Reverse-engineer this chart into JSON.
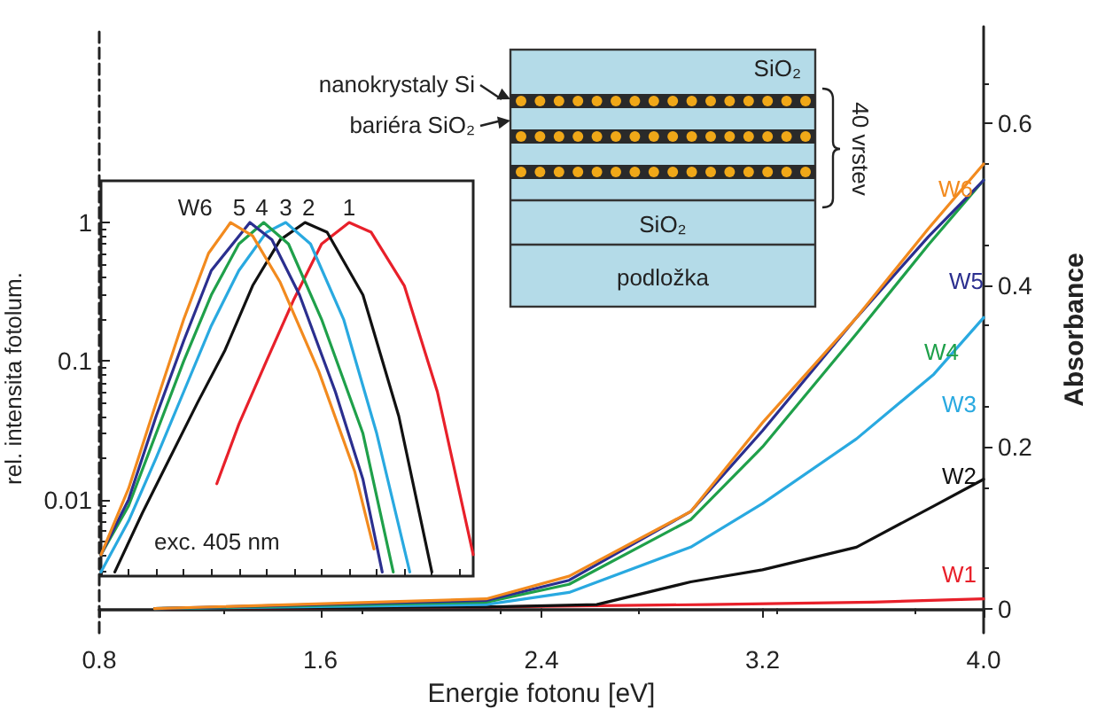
{
  "chart_data": [
    {
      "type": "line",
      "xlabel": "Energie fotonu [eV]",
      "ylabel": "Absorbance",
      "xlim": [
        0.8,
        4.0
      ],
      "xticks": [
        0.8,
        1.6,
        2.4,
        3.2,
        {
          "value": 4.0,
          "label": "4.0"
        }
      ],
      "ylim": [
        -0.03,
        0.72
      ],
      "yticks": [
        0,
        0.2,
        0.4,
        0.6
      ],
      "grid": false,
      "legend": false,
      "marker": "none",
      "line_style": "solid",
      "annotations": [
        "SiO₂",
        "nanokrystaly Si",
        "bariéra SiO₂",
        "40 vrstev",
        "SiO₂",
        "podložka"
      ],
      "series": [
        {
          "name": "W1",
          "color": "#e8202a",
          "x": [
            1.0,
            2.2,
            3.0,
            3.6,
            4.0
          ],
          "values": [
            0,
            0.002,
            0.005,
            0.008,
            0.012
          ]
        },
        {
          "name": "W2",
          "color": "#111111",
          "x": [
            1.0,
            2.2,
            2.6,
            2.94,
            3.2,
            3.54,
            3.82,
            4.0
          ],
          "values": [
            0,
            0.002,
            0.005,
            0.033,
            0.048,
            0.076,
            0.127,
            0.16
          ]
        },
        {
          "name": "W3",
          "color": "#29a9e0",
          "x": [
            1.0,
            2.2,
            2.5,
            2.94,
            3.2,
            3.54,
            3.82,
            4.0
          ],
          "values": [
            0,
            0.005,
            0.02,
            0.076,
            0.13,
            0.21,
            0.29,
            0.36
          ]
        },
        {
          "name": "W4",
          "color": "#1fa04a",
          "x": [
            1.0,
            2.2,
            2.5,
            2.94,
            3.2,
            3.54,
            3.8,
            4.0
          ],
          "values": [
            0,
            0.008,
            0.03,
            0.11,
            0.2,
            0.34,
            0.45,
            0.53
          ]
        },
        {
          "name": "W5",
          "color": "#2b2f8f",
          "x": [
            1.0,
            2.2,
            2.5,
            2.94,
            3.2,
            3.54,
            3.8,
            4.0
          ],
          "values": [
            0,
            0.01,
            0.035,
            0.12,
            0.22,
            0.36,
            0.46,
            0.53
          ]
        },
        {
          "name": "W6",
          "color": "#f28a1e",
          "x": [
            1.0,
            2.2,
            2.5,
            2.94,
            3.2,
            3.54,
            3.8,
            4.0
          ],
          "values": [
            0,
            0.012,
            0.04,
            0.12,
            0.23,
            0.36,
            0.47,
            0.55
          ]
        }
      ]
    },
    {
      "type": "line",
      "ylabel": "rel. intensita fotolum.",
      "log": "y",
      "xlim": [
        0.8,
        2.15
      ],
      "xticks": [
        0.8,
        {
          "value": 0.9,
          "label": null
        },
        {
          "value": 1.0,
          "label": null
        },
        {
          "value": 1.1,
          "label": null
        },
        {
          "value": 1.2,
          "label": null
        },
        {
          "value": 1.3,
          "label": null
        },
        {
          "value": 1.4,
          "label": null
        },
        {
          "value": 1.5,
          "label": null
        },
        1.6,
        {
          "value": 1.7,
          "label": null
        },
        {
          "value": 1.8,
          "label": null
        },
        {
          "value": 1.9,
          "label": null
        },
        {
          "value": 2.0,
          "label": null
        },
        {
          "value": 2.1,
          "label": null
        }
      ],
      "ylim": [
        0.0028,
        2
      ],
      "yticks": [
        0.01,
        0.1,
        1
      ],
      "tick_labels": "y",
      "grid": false,
      "legend": false,
      "marker": "none",
      "line_style": "solid",
      "annotations": [
        "exc. 405 nm"
      ],
      "series": [
        {
          "name": "W6",
          "color": "#f28a1e",
          "x": [
            0.8,
            0.9,
            1.0,
            1.1,
            1.19,
            1.27,
            1.35,
            1.45,
            1.59,
            1.72,
            1.79
          ],
          "values": [
            0.004,
            0.012,
            0.05,
            0.2,
            0.6,
            1,
            0.8,
            0.37,
            0.084,
            0.016,
            0.0044
          ]
        },
        {
          "name": "5",
          "color": "#2b2f8f",
          "x": [
            0.8,
            0.9,
            1.0,
            1.1,
            1.2,
            1.34,
            1.42,
            1.52,
            1.65,
            1.75,
            1.82
          ],
          "values": [
            0.004,
            0.01,
            0.04,
            0.14,
            0.45,
            1,
            0.75,
            0.3,
            0.06,
            0.014,
            0.003
          ]
        },
        {
          "name": "4",
          "color": "#1fa04a",
          "x": [
            0.8,
            0.9,
            1.0,
            1.1,
            1.2,
            1.3,
            1.39,
            1.48,
            1.6,
            1.75,
            1.86
          ],
          "values": [
            0.004,
            0.009,
            0.03,
            0.1,
            0.3,
            0.7,
            1,
            0.7,
            0.2,
            0.03,
            0.003
          ]
        },
        {
          "name": "3",
          "color": "#29a9e0",
          "x": [
            0.8,
            0.9,
            1.0,
            1.1,
            1.2,
            1.3,
            1.4,
            1.47,
            1.56,
            1.68,
            1.8,
            1.92
          ],
          "values": [
            0.003,
            0.007,
            0.02,
            0.06,
            0.18,
            0.45,
            0.85,
            1,
            0.7,
            0.2,
            0.03,
            0.003
          ]
        },
        {
          "name": "2",
          "color": "#111111",
          "x": [
            0.85,
            0.95,
            1.05,
            1.15,
            1.25,
            1.35,
            1.45,
            1.54,
            1.62,
            1.75,
            1.88,
            2.0
          ],
          "values": [
            0.003,
            0.008,
            0.02,
            0.05,
            0.12,
            0.35,
            0.75,
            1,
            0.85,
            0.3,
            0.04,
            0.003
          ]
        },
        {
          "name": "1",
          "color": "#e8202a",
          "x": [
            1.22,
            1.3,
            1.4,
            1.5,
            1.6,
            1.7,
            1.78,
            1.9,
            2.02,
            2.15
          ],
          "values": [
            0.013,
            0.035,
            0.1,
            0.28,
            0.7,
            1,
            0.85,
            0.35,
            0.06,
            0.004
          ]
        }
      ]
    }
  ]
}
